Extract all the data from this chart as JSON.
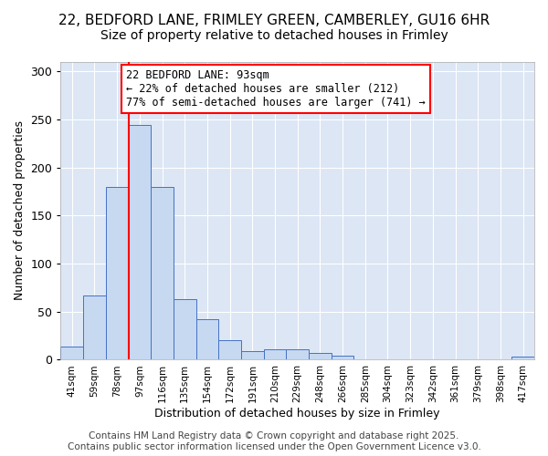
{
  "title_line1": "22, BEDFORD LANE, FRIMLEY GREEN, CAMBERLEY, GU16 6HR",
  "title_line2": "Size of property relative to detached houses in Frimley",
  "xlabel": "Distribution of detached houses by size in Frimley",
  "ylabel": "Number of detached properties",
  "categories": [
    "41sqm",
    "59sqm",
    "78sqm",
    "97sqm",
    "116sqm",
    "135sqm",
    "154sqm",
    "172sqm",
    "191sqm",
    "210sqm",
    "229sqm",
    "248sqm",
    "266sqm",
    "285sqm",
    "304sqm",
    "323sqm",
    "342sqm",
    "361sqm",
    "379sqm",
    "398sqm",
    "417sqm"
  ],
  "values": [
    14,
    67,
    180,
    244,
    180,
    63,
    42,
    20,
    9,
    11,
    11,
    7,
    4,
    0,
    0,
    0,
    0,
    0,
    0,
    0,
    3
  ],
  "bar_color": "#c6d9f1",
  "bar_edge_color": "#4472c4",
  "vline_color": "red",
  "annotation_text": "22 BEDFORD LANE: 93sqm\n← 22% of detached houses are smaller (212)\n77% of semi-detached houses are larger (741) →",
  "annotation_box_color": "white",
  "annotation_box_edge": "red",
  "ylim": [
    0,
    310
  ],
  "yticks": [
    0,
    50,
    100,
    150,
    200,
    250,
    300
  ],
  "bg_color": "#dce6f5",
  "footer": "Contains HM Land Registry data © Crown copyright and database right 2025.\nContains public sector information licensed under the Open Government Licence v3.0.",
  "footer_fontsize": 7.5,
  "title1_fontsize": 11,
  "title2_fontsize": 10,
  "xlabel_fontsize": 9,
  "ylabel_fontsize": 9,
  "annotation_fontsize": 8.5
}
